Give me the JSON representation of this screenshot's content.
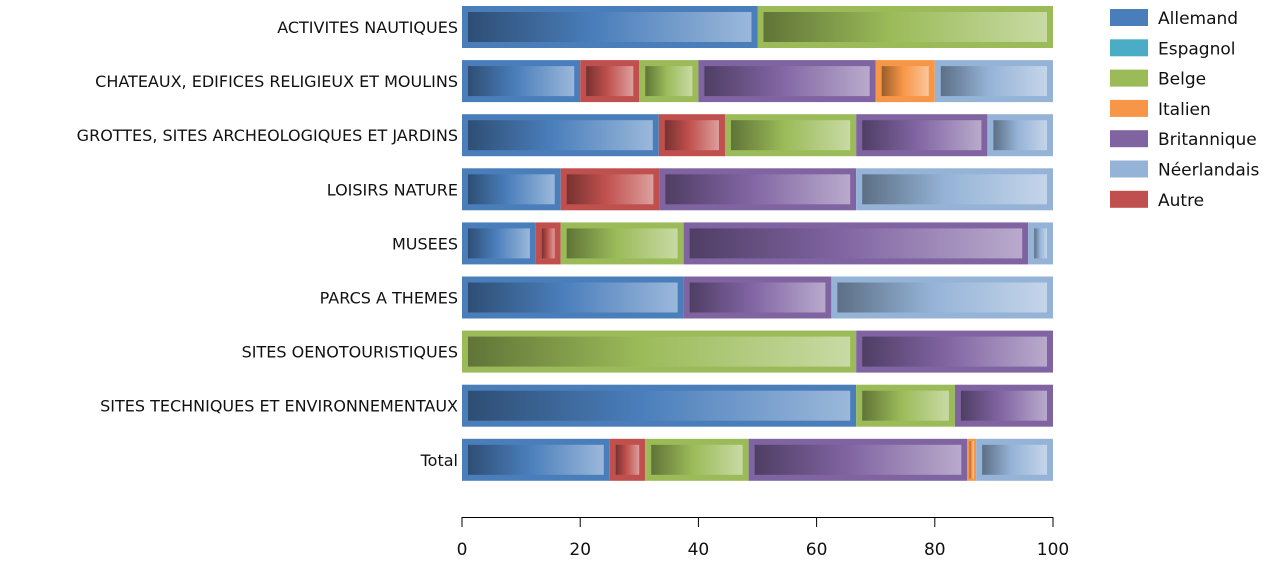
{
  "chart_data": {
    "type": "bar",
    "orientation": "horizontal",
    "stacked": true,
    "categories": [
      "ACTIVITES NAUTIQUES",
      "CHATEAUX, EDIFICES RELIGIEUX ET MOULINS",
      "GROTTES, SITES ARCHEOLOGIQUES ET JARDINS",
      "LOISIRS NATURE",
      "MUSEES",
      "PARCS A THEMES",
      "SITES OENOTOURISTIQUES",
      "SITES TECHNIQUES ET ENVIRONNEMENTAUX",
      "Total"
    ],
    "series": [
      {
        "name": "Allemand",
        "color": "#4a7ebb",
        "values": [
          50,
          20,
          33.3,
          16.7,
          12.5,
          37.5,
          0,
          66.7,
          25
        ]
      },
      {
        "name": "Espagnol",
        "color": "#4bacc6",
        "values": [
          0,
          0,
          0,
          0,
          0,
          0,
          0,
          0,
          0
        ]
      },
      {
        "name": "Belge",
        "color": "#9bbb59",
        "values": [
          50,
          10,
          22.2,
          0,
          20.8,
          0,
          66.7,
          16.7,
          17.5
        ]
      },
      {
        "name": "Italien",
        "color": "#f79646",
        "values": [
          0,
          10,
          0,
          0,
          0,
          0,
          0,
          0,
          1.5
        ]
      },
      {
        "name": "Britannique",
        "color": "#8064a2",
        "values": [
          0,
          30,
          22.2,
          33.3,
          58.3,
          25,
          33.3,
          16.6,
          37
        ]
      },
      {
        "name": "Néerlandais",
        "color": "#95b3d7",
        "values": [
          0,
          20,
          11.1,
          33.3,
          4.2,
          37.5,
          0,
          0,
          13
        ]
      },
      {
        "name": "Autre",
        "color": "#c0504d",
        "values": [
          0,
          10,
          11.2,
          16.7,
          4.2,
          0,
          0,
          0,
          6
        ]
      }
    ],
    "stack_order": [
      "Allemand",
      "Autre",
      "Belge",
      "Britannique",
      "Italien",
      "Espagnol",
      "Néerlandais"
    ],
    "xlim": [
      0,
      100
    ],
    "xticks": [
      0,
      20,
      40,
      60,
      80,
      100
    ],
    "legend_position": "top-right",
    "grid": false,
    "title": "",
    "xlabel": "",
    "ylabel": ""
  }
}
